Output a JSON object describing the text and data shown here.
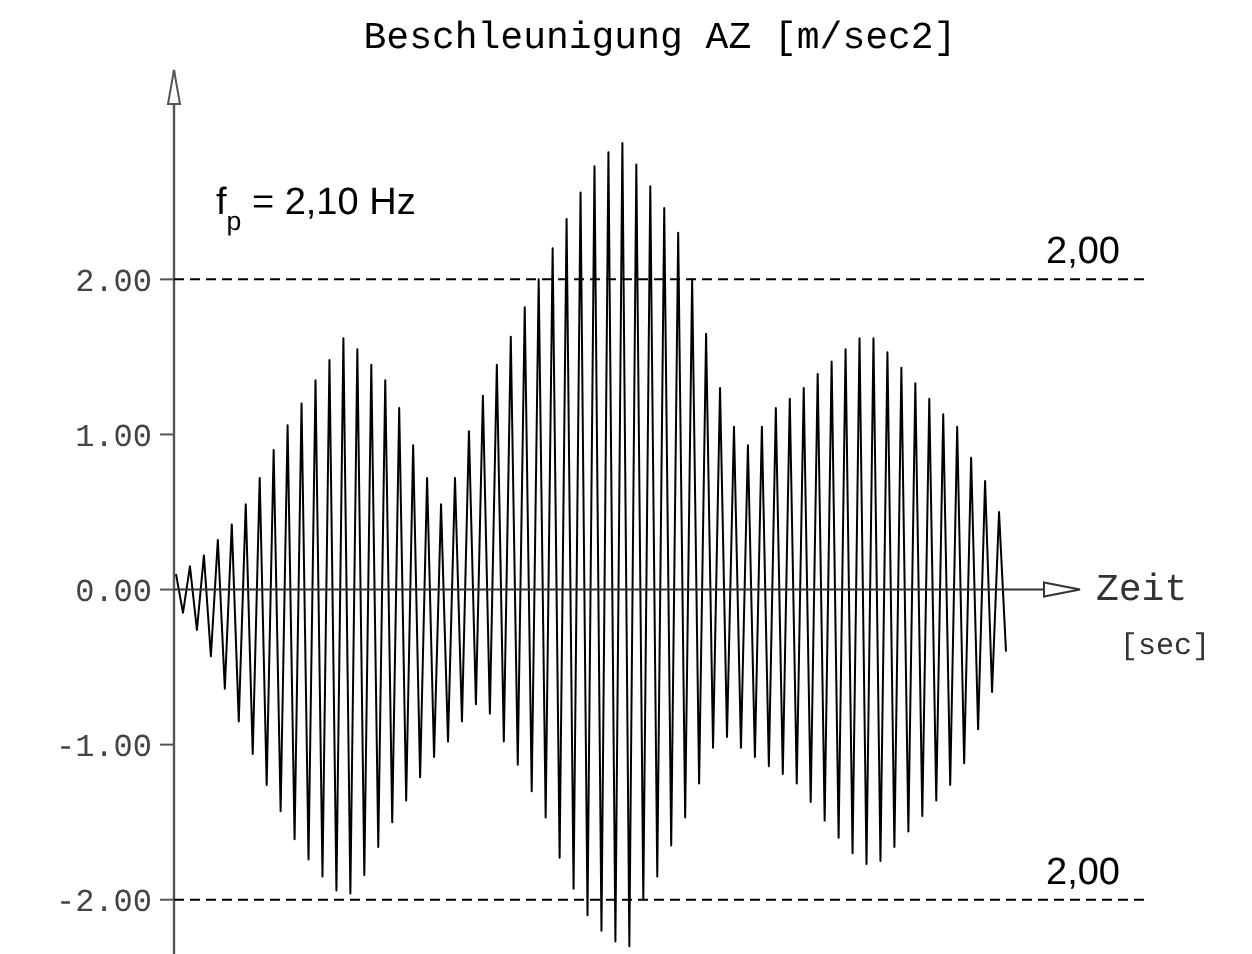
{
  "chart_data": {
    "type": "line",
    "title": "Beschleunigung AZ [m/sec2]",
    "xlabel": "Zeit [sec]",
    "annotations": [
      "f$_{p}$ = 2,10 Hz",
      "2,00"
    ],
    "categories": [
      null,
      null,
      null,
      null,
      null,
      null,
      null,
      null,
      null,
      null,
      null,
      null,
      null,
      null,
      null,
      null,
      null,
      null,
      null,
      null,
      null,
      null,
      null,
      null,
      null,
      null,
      null,
      null,
      null,
      null,
      null,
      null,
      null,
      null,
      null,
      null,
      null,
      null,
      null,
      null,
      null,
      null,
      null,
      null,
      null,
      null,
      null,
      null,
      null,
      null,
      null,
      null,
      null,
      null,
      null,
      null,
      null,
      null,
      null,
      null,
      null,
      null,
      null,
      null,
      null,
      null,
      null,
      null,
      null,
      null,
      null,
      null,
      null,
      null,
      null,
      null,
      null,
      null,
      null,
      null,
      null,
      null,
      null,
      null,
      null,
      null,
      null,
      null,
      null,
      null,
      null,
      null,
      null,
      null,
      null,
      null,
      null,
      null,
      null,
      null,
      null,
      null,
      null,
      null,
      null,
      null,
      null,
      null,
      null,
      null,
      null,
      null,
      null,
      null,
      null,
      null,
      null,
      null,
      null,
      null
    ],
    "series": [
      {
        "color": "#000000",
        "values": [
          0.1,
          -0.15,
          0.15,
          -0.26,
          0.22,
          -0.43,
          0.32,
          -0.64,
          0.42,
          -0.85,
          0.55,
          -1.06,
          0.72,
          -1.26,
          0.9,
          -1.43,
          1.06,
          -1.61,
          1.2,
          -1.74,
          1.35,
          -1.85,
          1.48,
          -1.94,
          1.62,
          -1.96,
          1.55,
          -1.84,
          1.45,
          -1.66,
          1.35,
          -1.5,
          1.17,
          -1.36,
          0.93,
          -1.21,
          0.72,
          -1.08,
          0.55,
          -0.98,
          0.72,
          -0.85,
          1.02,
          -0.74,
          1.25,
          -0.8,
          1.45,
          -0.98,
          1.63,
          -1.13,
          1.82,
          -1.3,
          2.0,
          -1.47,
          2.2,
          -1.73,
          2.39,
          -1.93,
          2.56,
          -2.1,
          2.73,
          -2.2,
          2.82,
          -2.27,
          2.88,
          -2.3,
          2.74,
          -2.0,
          2.6,
          -1.85,
          2.46,
          -1.65,
          2.3,
          -1.47,
          2.0,
          -1.25,
          1.65,
          -1.02,
          1.3,
          -0.95,
          1.05,
          -1.02,
          0.93,
          -1.08,
          1.05,
          -1.14,
          1.17,
          -1.19,
          1.23,
          -1.25,
          1.3,
          -1.37,
          1.39,
          -1.49,
          1.47,
          -1.6,
          1.55,
          -1.7,
          1.62,
          -1.77,
          1.62,
          -1.75,
          1.53,
          -1.66,
          1.43,
          -1.56,
          1.33,
          -1.46,
          1.23,
          -1.36,
          1.13,
          -1.26,
          1.05,
          -1.12,
          0.85,
          -0.9,
          0.7,
          -0.66,
          0.5,
          -0.4
        ]
      }
    ],
    "ylim": [
      -2.35,
      3.35
    ],
    "yticks": [
      {
        "value": -2,
        "label": "-2.00"
      },
      {
        "value": -1,
        "label": "-1.00"
      },
      {
        "value": 0,
        "label": "0.00"
      },
      {
        "value": 1,
        "label": "1.00"
      },
      {
        "value": 2,
        "label": "2.00"
      }
    ],
    "tick_labels": "y",
    "ref_lines": [
      {
        "axis": "y",
        "value": 2,
        "label": "2,00",
        "line_style": "dashed"
      },
      {
        "axis": "y",
        "value": -2,
        "line_style": "dashed"
      }
    ]
  }
}
